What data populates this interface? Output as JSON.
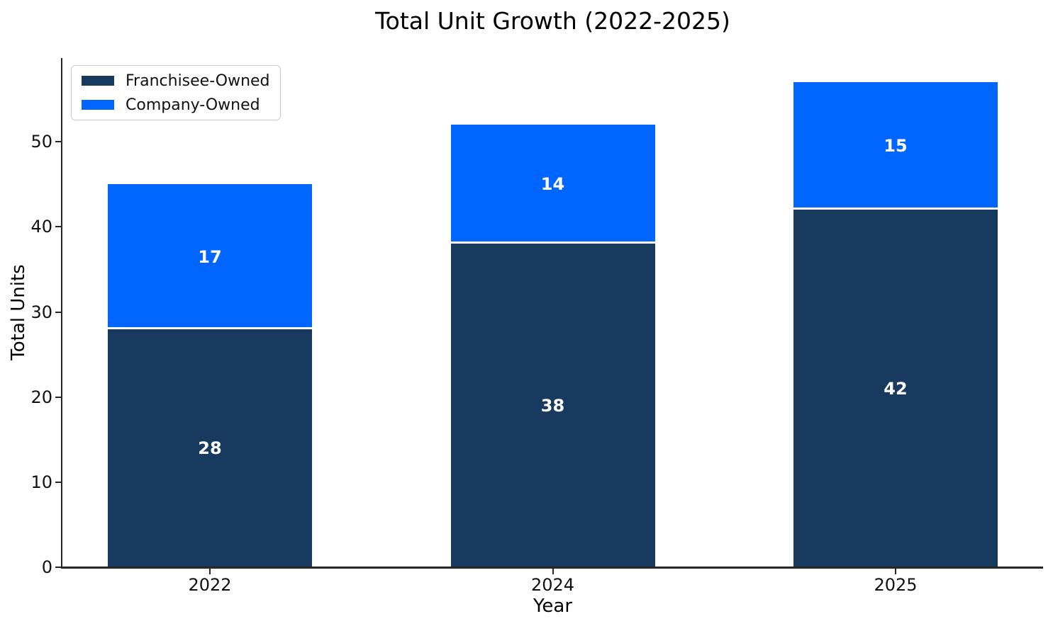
{
  "chart_data": {
    "type": "bar",
    "stacked": true,
    "title": "Total Unit Growth (2022-2025)",
    "xlabel": "Year",
    "ylabel": "Total Units",
    "categories": [
      "2022",
      "2024",
      "2025"
    ],
    "series": [
      {
        "name": "Franchisee-Owned",
        "color": "#173a5e",
        "values": [
          28,
          38,
          42
        ]
      },
      {
        "name": "Company-Owned",
        "color": "#0066ff",
        "values": [
          17,
          14,
          15
        ]
      }
    ],
    "stack_totals": [
      45,
      52,
      57
    ],
    "bar_value_labels": {
      "Franchisee-Owned": [
        "28",
        "38",
        "42"
      ],
      "Company-Owned": [
        "17",
        "14",
        "15"
      ]
    },
    "ylim": [
      0,
      59.85
    ],
    "yticks": [
      "0",
      "10",
      "20",
      "30",
      "40",
      "50"
    ],
    "grid": {
      "visible": true,
      "style": "dashed",
      "axes": "both",
      "drawn_over_bars": true
    },
    "legend_position": "upper-left",
    "colors": {
      "franchisee_owned": "#173a5e",
      "company_owned": "#0066ff",
      "bar_label_text": "#ffffff",
      "segment_separator": "#ffffff",
      "axis_spine": "#262626",
      "gridline": "#dcdfe4",
      "background": "#ffffff",
      "text": "#111111"
    }
  }
}
